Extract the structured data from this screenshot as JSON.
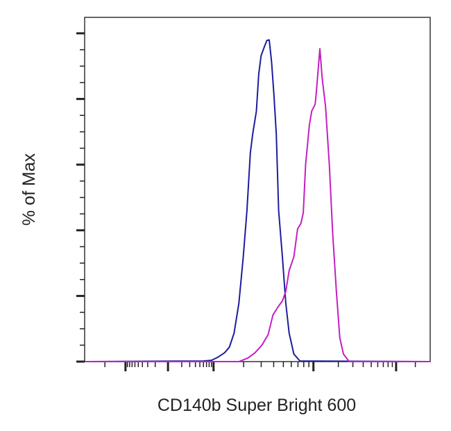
{
  "chart_data": {
    "type": "line",
    "title": "",
    "xlabel": "CD140b Super Bright 600",
    "ylabel": "% of Max",
    "x_scale": "biexponential (display channel)",
    "xlim": [
      0,
      1024
    ],
    "ylim": [
      0,
      105
    ],
    "y_major_ticks": [
      0,
      20,
      40,
      60,
      80,
      100
    ],
    "y_minor_step": 5,
    "x_major_ticks": [
      121,
      247,
      382,
      678,
      923
    ],
    "tick_labels_shown": false,
    "grid": false,
    "legend": "none",
    "series": [
      {
        "color": "#1c1c9c",
        "x": [
          0,
          352,
          376,
          394,
          415,
          429,
          443,
          457,
          470,
          481,
          491,
          498,
          509,
          516,
          523,
          533,
          540,
          547,
          554,
          561,
          568,
          575,
          586,
          596,
          606,
          620,
          638,
          1024
        ],
        "y": [
          0,
          0.2,
          0.4,
          1.3,
          2.7,
          4.4,
          8.7,
          17.8,
          31.9,
          46.0,
          63.6,
          69.3,
          76.3,
          87.6,
          93.2,
          96.0,
          97.8,
          98.0,
          91.3,
          81.3,
          69.3,
          46.0,
          31.9,
          17.8,
          8.7,
          2.3,
          0.2,
          0
        ]
      },
      {
        "color": "#c21fc2",
        "x": [
          0,
          457,
          484,
          505,
          526,
          544,
          558,
          572,
          586,
          596,
          606,
          620,
          631,
          641,
          648,
          655,
          666,
          673,
          683,
          686,
          697,
          704,
          714,
          725,
          735,
          746,
          756,
          767,
          784,
          1024
        ],
        "y": [
          0,
          0,
          1.1,
          2.7,
          5.1,
          8.3,
          14.2,
          16.5,
          18.5,
          21.4,
          27.7,
          31.9,
          40.4,
          42.1,
          45.3,
          60.1,
          72.1,
          76.3,
          78.4,
          81.3,
          95.3,
          86.2,
          77.7,
          60.1,
          39.0,
          21.4,
          7.3,
          2.3,
          0,
          0
        ]
      }
    ]
  }
}
